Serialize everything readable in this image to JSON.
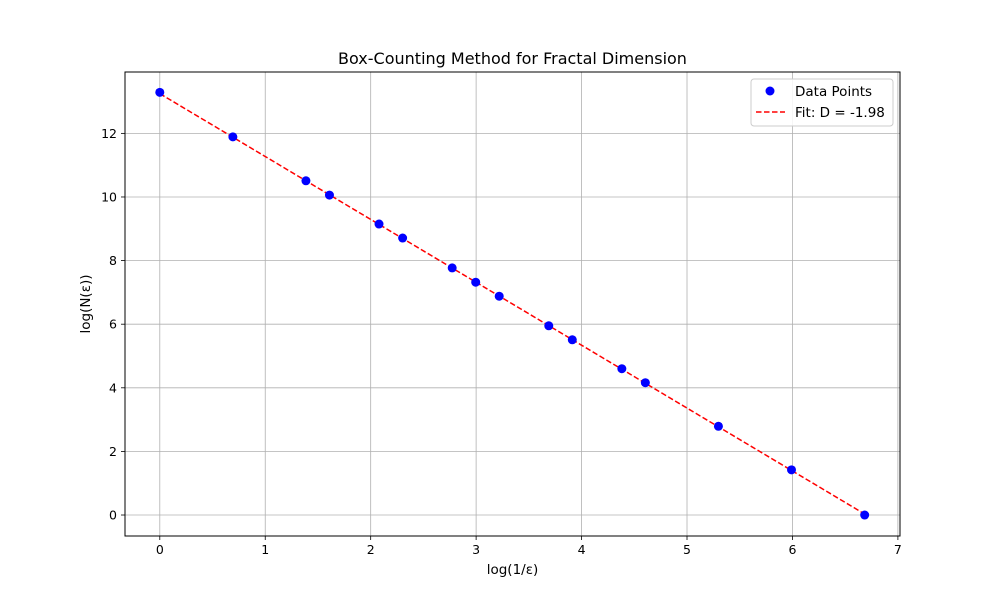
{
  "chart_data": {
    "type": "scatter",
    "title": "Box-Counting Method for Fractal Dimension",
    "xlabel": "log(1/ε)",
    "ylabel": "log(N(ε))",
    "xlim": [
      -0.33,
      7.02
    ],
    "ylim": [
      -0.66,
      13.93
    ],
    "x_ticks": [
      0,
      1,
      2,
      3,
      4,
      5,
      6,
      7
    ],
    "y_ticks": [
      0,
      2,
      4,
      6,
      8,
      10,
      12
    ],
    "grid": true,
    "legend_position": "top-right",
    "series": [
      {
        "name": "Data Points",
        "kind": "scatter",
        "color": "#0000ff",
        "x": [
          0.0,
          0.693,
          1.386,
          1.609,
          2.079,
          2.303,
          2.773,
          2.996,
          3.219,
          3.689,
          3.912,
          4.382,
          4.605,
          5.298,
          5.991,
          6.685
        ],
        "y": [
          13.29,
          11.89,
          10.51,
          10.06,
          9.15,
          8.71,
          7.77,
          7.32,
          6.88,
          5.95,
          5.51,
          4.6,
          4.16,
          2.79,
          1.42,
          0.0
        ]
      },
      {
        "name": "Fit: D = -1.98",
        "kind": "line",
        "style": "dashed",
        "color": "#ff0000",
        "x": [
          0.0,
          6.685
        ],
        "y": [
          13.25,
          0.03
        ]
      }
    ]
  }
}
